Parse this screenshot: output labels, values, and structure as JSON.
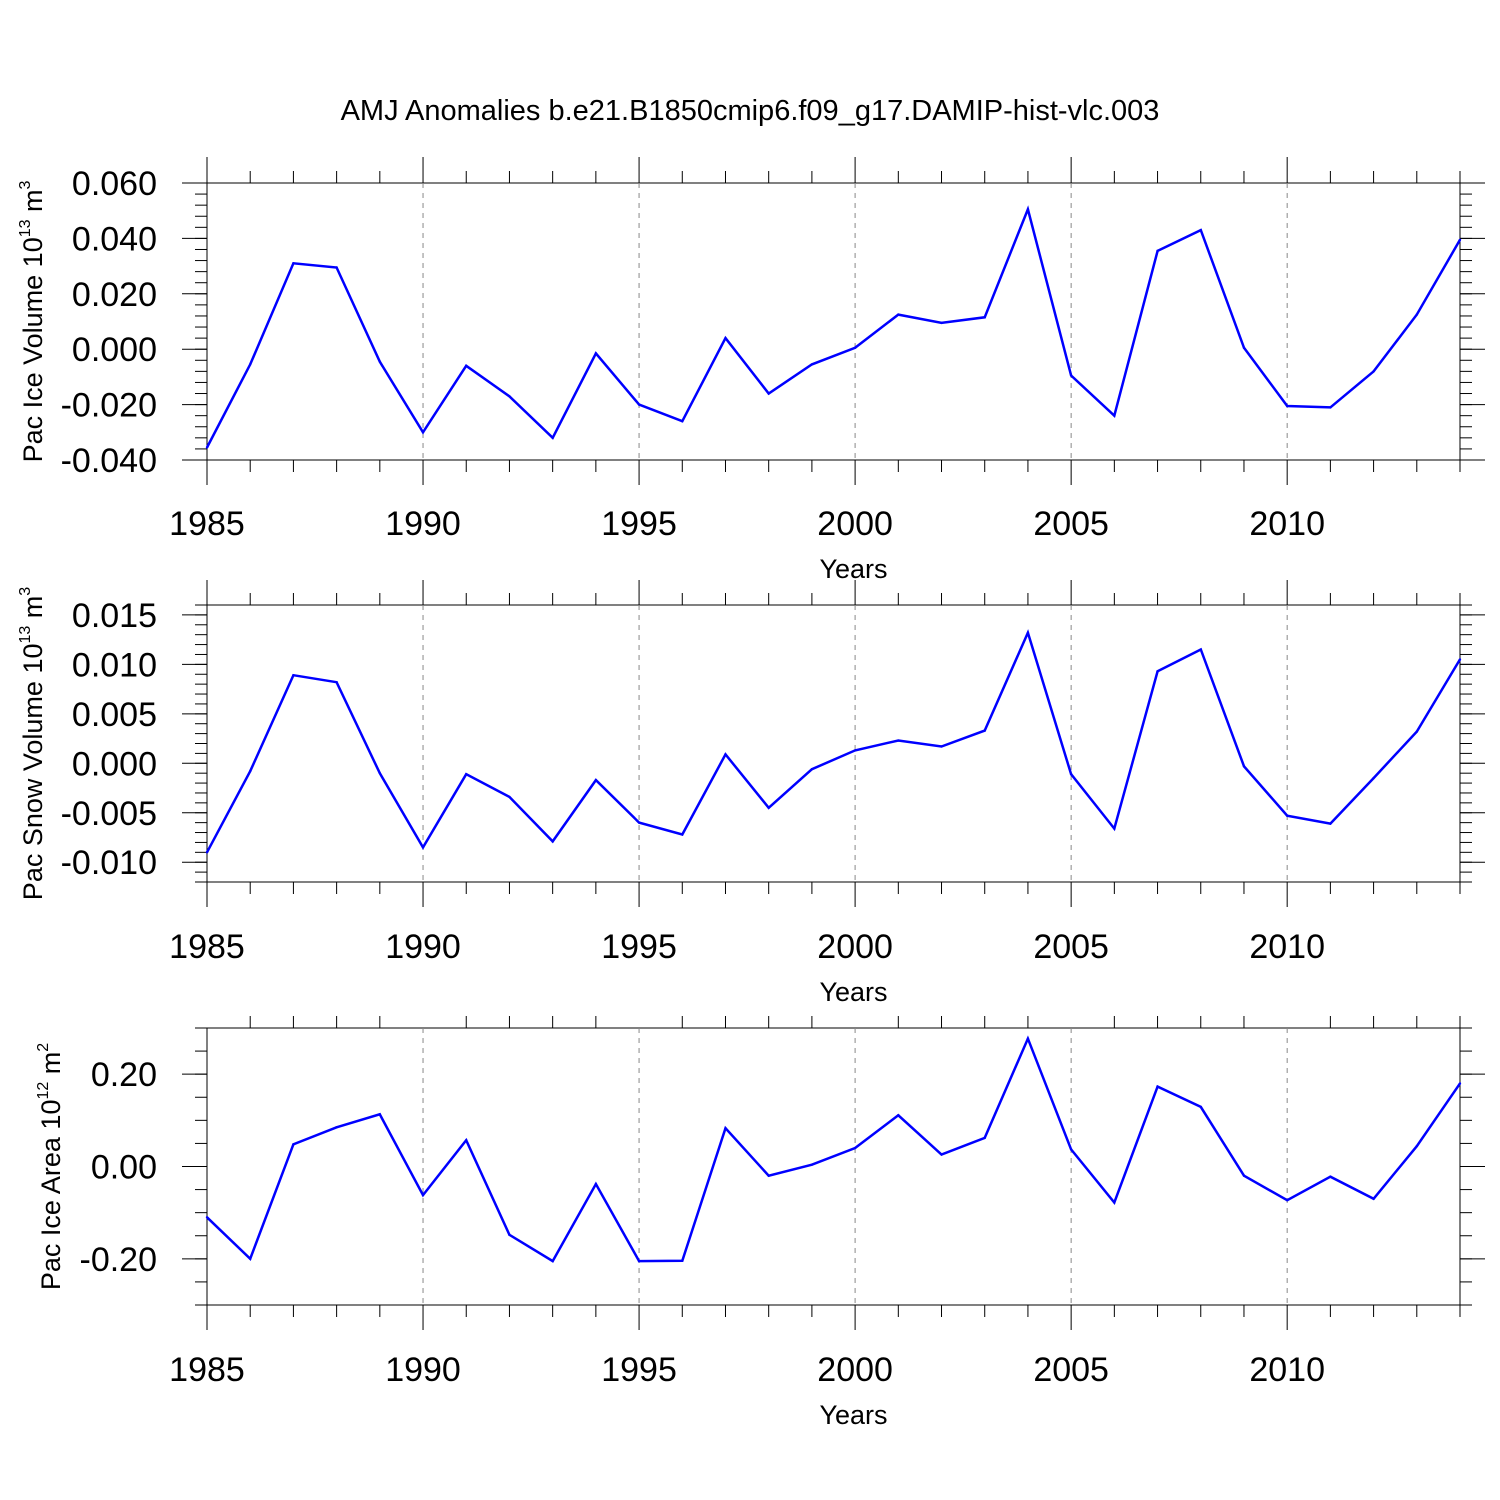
{
  "figure": {
    "title": "AMJ Anomalies b.e21.B1850cmip6.f09_g17.DAMIP-hist-vlc.003",
    "line_color": "#0000ff",
    "grid_color": "#888888"
  },
  "chart_data": [
    {
      "type": "line",
      "xlabel": "Years",
      "ylabel": {
        "text": "Pac Ice Volume 10",
        "exp": "13",
        "unit": " m",
        "unit_exp": "3"
      },
      "xlim": [
        1985,
        2014
      ],
      "ylim": [
        -0.04,
        0.06
      ],
      "yticks": [
        -0.04,
        -0.02,
        0.0,
        0.02,
        0.04,
        0.06
      ],
      "ytick_labels": [
        "-0.040",
        "-0.020",
        "0.000",
        "0.020",
        "0.040",
        "0.060"
      ],
      "yminor_step": 0.004,
      "xticks": [
        1985,
        1990,
        1995,
        2000,
        2005,
        2010
      ],
      "xtick_labels": [
        "1985",
        "1990",
        "1995",
        "2000",
        "2005",
        "2010"
      ],
      "grid": "vertical dashed at major x ticks",
      "x": [
        1985,
        1986,
        1987,
        1988,
        1989,
        1990,
        1991,
        1992,
        1993,
        1994,
        1995,
        1996,
        1997,
        1998,
        1999,
        2000,
        2001,
        2002,
        2003,
        2004,
        2005,
        2006,
        2007,
        2008,
        2009,
        2010,
        2011,
        2012,
        2013,
        2014
      ],
      "values": [
        -0.0355,
        -0.0055,
        0.031,
        0.0295,
        -0.0045,
        -0.03,
        -0.006,
        -0.017,
        -0.032,
        -0.0015,
        -0.02,
        -0.026,
        0.004,
        -0.016,
        -0.0055,
        0.0005,
        0.0125,
        0.0095,
        0.0115,
        0.0505,
        -0.0095,
        -0.024,
        0.0355,
        0.043,
        0.0005,
        -0.0205,
        -0.021,
        -0.008,
        0.0125,
        0.0395
      ]
    },
    {
      "type": "line",
      "xlabel": "Years",
      "ylabel": {
        "text": "Pac Snow Volume 10",
        "exp": "13",
        "unit": " m",
        "unit_exp": "3"
      },
      "xlim": [
        1985,
        2014
      ],
      "ylim": [
        -0.012,
        0.016
      ],
      "yticks": [
        -0.01,
        -0.005,
        0.0,
        0.005,
        0.01,
        0.015
      ],
      "ytick_labels": [
        "-0.010",
        "-0.005",
        "0.000",
        "0.005",
        "0.010",
        "0.015"
      ],
      "yminor_step": 0.001,
      "xticks": [
        1985,
        1990,
        1995,
        2000,
        2005,
        2010
      ],
      "xtick_labels": [
        "1985",
        "1990",
        "1995",
        "2000",
        "2005",
        "2010"
      ],
      "grid": "vertical dashed at major x ticks",
      "x": [
        1985,
        1986,
        1987,
        1988,
        1989,
        1990,
        1991,
        1992,
        1993,
        1994,
        1995,
        1996,
        1997,
        1998,
        1999,
        2000,
        2001,
        2002,
        2003,
        2004,
        2005,
        2006,
        2007,
        2008,
        2009,
        2010,
        2011,
        2012,
        2013,
        2014
      ],
      "values": [
        -0.009,
        -0.0008,
        0.0089,
        0.0082,
        -0.001,
        -0.0085,
        -0.0011,
        -0.0034,
        -0.0079,
        -0.0017,
        -0.006,
        -0.0072,
        0.0009,
        -0.0045,
        -0.0006,
        0.0013,
        0.0023,
        0.0017,
        0.0033,
        0.0132,
        -0.0011,
        -0.0066,
        0.0093,
        0.0115,
        -0.0003,
        -0.0053,
        -0.0061,
        -0.0015,
        0.0032,
        0.0105
      ]
    },
    {
      "type": "line",
      "xlabel": "Years",
      "ylabel": {
        "text": "Pac Ice Area 10",
        "exp": "12",
        "unit": " m",
        "unit_exp": "2"
      },
      "xlim": [
        1985,
        2014
      ],
      "ylim": [
        -0.3,
        0.3
      ],
      "yticks": [
        -0.2,
        0.0,
        0.2
      ],
      "ytick_labels": [
        "-0.20",
        "0.00",
        "0.20"
      ],
      "yminor_step": 0.05,
      "xticks": [
        1985,
        1990,
        1995,
        2000,
        2005,
        2010
      ],
      "xtick_labels": [
        "1985",
        "1990",
        "1995",
        "2000",
        "2005",
        "2010"
      ],
      "grid": "vertical dashed at major x ticks",
      "x": [
        1985,
        1986,
        1987,
        1988,
        1989,
        1990,
        1991,
        1992,
        1993,
        1994,
        1995,
        1996,
        1997,
        1998,
        1999,
        2000,
        2001,
        2002,
        2003,
        2004,
        2005,
        2006,
        2007,
        2008,
        2009,
        2010,
        2011,
        2012,
        2013,
        2014
      ],
      "values": [
        -0.11,
        -0.2,
        0.048,
        0.085,
        0.113,
        -0.062,
        0.057,
        -0.148,
        -0.205,
        -0.038,
        -0.205,
        -0.204,
        0.083,
        -0.02,
        0.004,
        0.04,
        0.111,
        0.026,
        0.062,
        0.277,
        0.037,
        -0.078,
        0.173,
        0.129,
        -0.02,
        -0.073,
        -0.022,
        -0.07,
        0.044,
        0.18
      ]
    }
  ]
}
